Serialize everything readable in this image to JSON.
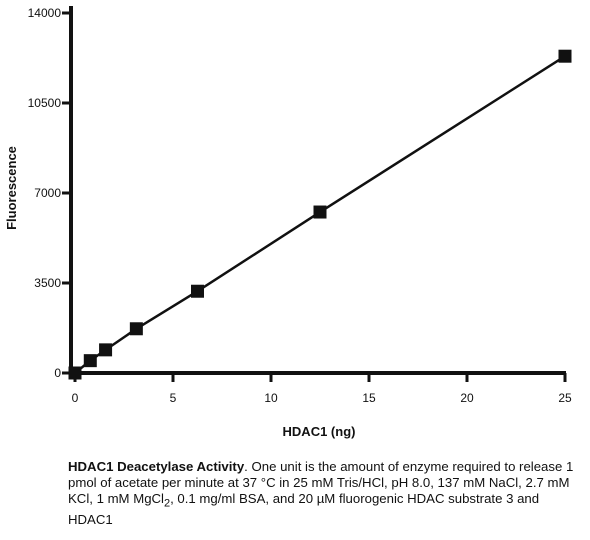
{
  "chart_data": {
    "type": "line",
    "xlabel": "HDAC1 (ng)",
    "ylabel": "Fluorescence",
    "xlim": [
      0,
      25
    ],
    "ylim": [
      0,
      14000
    ],
    "x_ticks": [
      0,
      5,
      10,
      15,
      20,
      25
    ],
    "y_ticks": [
      0,
      3500,
      7000,
      10500,
      14000
    ],
    "grid": false,
    "series": [
      {
        "marker": "square",
        "color": "#111111",
        "points": [
          {
            "x": 0,
            "y": 0
          },
          {
            "x": 0.78,
            "y": 480
          },
          {
            "x": 1.56,
            "y": 900
          },
          {
            "x": 3.13,
            "y": 1720
          },
          {
            "x": 6.25,
            "y": 3180
          },
          {
            "x": 12.5,
            "y": 6260
          },
          {
            "x": 25,
            "y": 12320
          }
        ]
      }
    ]
  },
  "caption": {
    "title": "HDAC1 Deacetylase Activity",
    "text_before_subscript": ". One unit is the amount of enzyme required to release 1 pmol of acetate per minute at 37 °C in 25 mM Tris/HCl, pH 8.0, 137 mM NaCl, 2.7 mM KCl, 1 mM MgCl",
    "subscript": "2",
    "text_after_subscript": ", 0.1 mg/ml BSA, and 20 µM fluorogenic HDAC substrate 3 and HDAC1"
  }
}
